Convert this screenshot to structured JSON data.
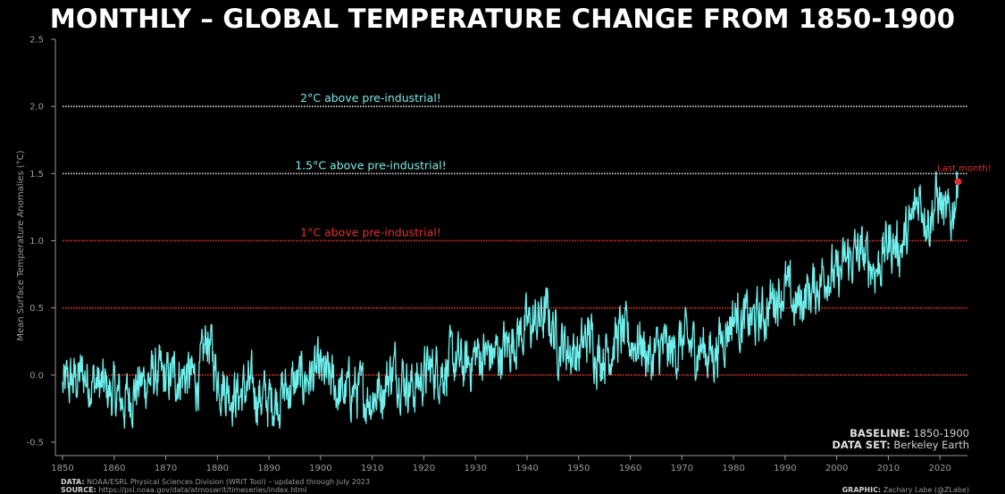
{
  "chart_data": {
    "type": "line",
    "title": "MONTHLY – GLOBAL TEMPERATURE CHANGE FROM 1850-1900",
    "ylabel": "Mean Surface Temperature Anomalies (°C)",
    "xlabel": "",
    "xlim": [
      1850,
      2023.6
    ],
    "ylim": [
      -0.6,
      2.5
    ],
    "x_ticks": [
      1850,
      1860,
      1870,
      1880,
      1890,
      1900,
      1910,
      1920,
      1930,
      1940,
      1950,
      1960,
      1970,
      1980,
      1990,
      2000,
      2010,
      2020
    ],
    "y_ticks": [
      -0.5,
      0.0,
      0.5,
      1.0,
      1.5,
      2.0,
      2.5
    ],
    "series": [
      {
        "color": "#6ff0ec",
        "x": [
          1850,
          1852,
          1854,
          1856,
          1858,
          1860,
          1862,
          1864,
          1866,
          1868,
          1870,
          1872,
          1874,
          1876,
          1877,
          1878,
          1879,
          1880,
          1882,
          1884,
          1886,
          1888,
          1890,
          1892,
          1894,
          1896,
          1898,
          1900,
          1902,
          1904,
          1906,
          1908,
          1910,
          1912,
          1914,
          1916,
          1918,
          1920,
          1922,
          1924,
          1926,
          1928,
          1930,
          1932,
          1934,
          1936,
          1938,
          1940,
          1942,
          1944,
          1946,
          1948,
          1950,
          1952,
          1954,
          1956,
          1958,
          1960,
          1962,
          1964,
          1966,
          1968,
          1970,
          1972,
          1974,
          1976,
          1978,
          1980,
          1982,
          1984,
          1986,
          1988,
          1990,
          1992,
          1994,
          1996,
          1998,
          2000,
          2002,
          2004,
          2006,
          2008,
          2010,
          2012,
          2014,
          2015,
          2016,
          2017,
          2018,
          2019,
          2020,
          2021,
          2022,
          2023.5
        ],
        "y": [
          -0.1,
          -0.05,
          0.0,
          -0.05,
          -0.1,
          -0.15,
          -0.2,
          -0.1,
          -0.05,
          0.0,
          -0.05,
          0.0,
          0.0,
          -0.05,
          0.05,
          0.3,
          0.15,
          0.0,
          -0.1,
          -0.15,
          -0.1,
          -0.15,
          -0.2,
          -0.15,
          -0.1,
          -0.05,
          0.0,
          0.0,
          -0.05,
          -0.15,
          -0.1,
          -0.15,
          -0.15,
          -0.1,
          0.05,
          0.0,
          -0.1,
          0.0,
          0.05,
          0.05,
          0.1,
          0.05,
          0.15,
          0.15,
          0.15,
          0.2,
          0.3,
          0.35,
          0.4,
          0.45,
          0.25,
          0.2,
          0.15,
          0.3,
          0.15,
          0.2,
          0.3,
          0.25,
          0.25,
          0.1,
          0.2,
          0.15,
          0.25,
          0.2,
          0.2,
          0.15,
          0.3,
          0.45,
          0.4,
          0.4,
          0.45,
          0.6,
          0.65,
          0.5,
          0.6,
          0.65,
          0.8,
          0.7,
          0.85,
          0.9,
          0.85,
          0.8,
          1.0,
          0.95,
          1.05,
          1.2,
          1.35,
          1.25,
          1.15,
          1.3,
          1.3,
          1.15,
          1.15,
          1.44
        ]
      }
    ],
    "reference_lines": [
      {
        "y": 2.0,
        "label": "2°C above pre-industrial!",
        "color": "#d0d0d0",
        "label_color": "#7ce8e4"
      },
      {
        "y": 1.5,
        "label": "1.5°C above pre-industrial!",
        "color": "#d0d0d0",
        "label_color": "#7ce8e4"
      },
      {
        "y": 1.0,
        "label": "1°C above pre-industrial!",
        "color": "#e0302a",
        "label_color": "#e0302a"
      },
      {
        "y": 0.5,
        "label": "",
        "color": "#e0302a",
        "label_color": "#e0302a"
      },
      {
        "y": 0.0,
        "label": "",
        "color": "#e0302a",
        "label_color": "#e0302a"
      }
    ],
    "annotation": {
      "x": 2023.5,
      "y": 1.44,
      "label": "Last month!",
      "color": "#e0302a"
    },
    "grid": false,
    "legend": "none"
  },
  "notes": {
    "baseline_label": "BASELINE:",
    "baseline_value": "1850-1900",
    "dataset_label": "DATA SET:",
    "dataset_value": "Berkeley Earth",
    "data_label": "DATA:",
    "data_value": "NOAA/ESRL Physical Sciences Division (WRIT Tool) – updated through July 2023",
    "source_label": "SOURCE:",
    "source_value": "https://psl.noaa.gov/data/atmoswrit/timeseries/index.html",
    "graphic_label": "GRAPHIC:",
    "graphic_value": "Zachary Labe (@ZLabe)"
  },
  "colors": {
    "background": "#000000",
    "line": "#6ff0ec",
    "warning": "#e0302a"
  }
}
